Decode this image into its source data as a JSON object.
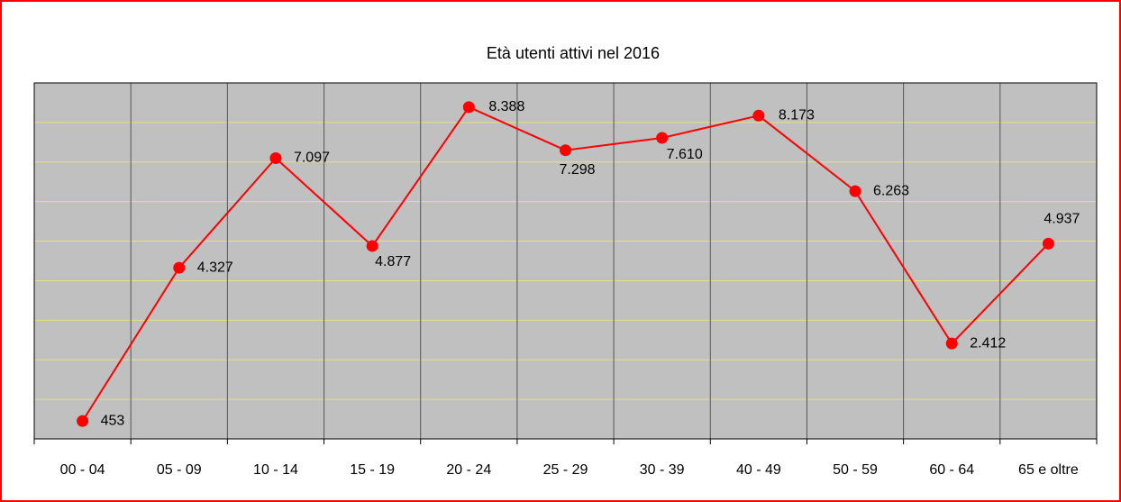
{
  "chart_data": {
    "type": "line",
    "title": "Età utenti attivi nel 2016",
    "categories": [
      "00 - 04",
      "05 - 09",
      "10 - 14",
      "15 - 19",
      "20 - 24",
      "25 - 29",
      "30 - 39",
      "40 - 49",
      "50 - 59",
      "60 - 64",
      "65 e oltre"
    ],
    "series": [
      {
        "name": "Età utenti attivi nel 2016",
        "color": "#ff0000",
        "values": [
          453,
          4327,
          7097,
          4877,
          8388,
          7298,
          7610,
          8173,
          6263,
          2412,
          4937
        ],
        "value_labels": [
          "453",
          "4.327",
          "7.097",
          "4.877",
          "8.388",
          "7.298",
          "7.610",
          "8.173",
          "6.263",
          "2.412",
          "4.937"
        ]
      }
    ],
    "ylim": [
      0,
      9000
    ],
    "yticks": [
      1000,
      2000,
      3000,
      4000,
      5000,
      6000,
      7000,
      8000
    ],
    "grid": true
  }
}
